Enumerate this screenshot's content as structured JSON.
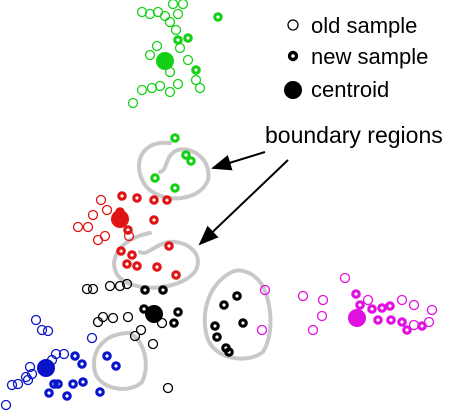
{
  "legend": {
    "old_sample": "old sample",
    "new_sample": "new sample",
    "centroid": "centroid"
  },
  "callout": {
    "text": "boundary regions"
  },
  "colors": {
    "green": "#16d016",
    "red": "#e01414",
    "black": "#000000",
    "blue": "#0a14c8",
    "magenta": "#e010e0",
    "boundary": "#c8c8c8"
  },
  "icons": {
    "old_sample": "open-circle",
    "new_sample": "thick-ring",
    "centroid": "filled-circle"
  }
}
